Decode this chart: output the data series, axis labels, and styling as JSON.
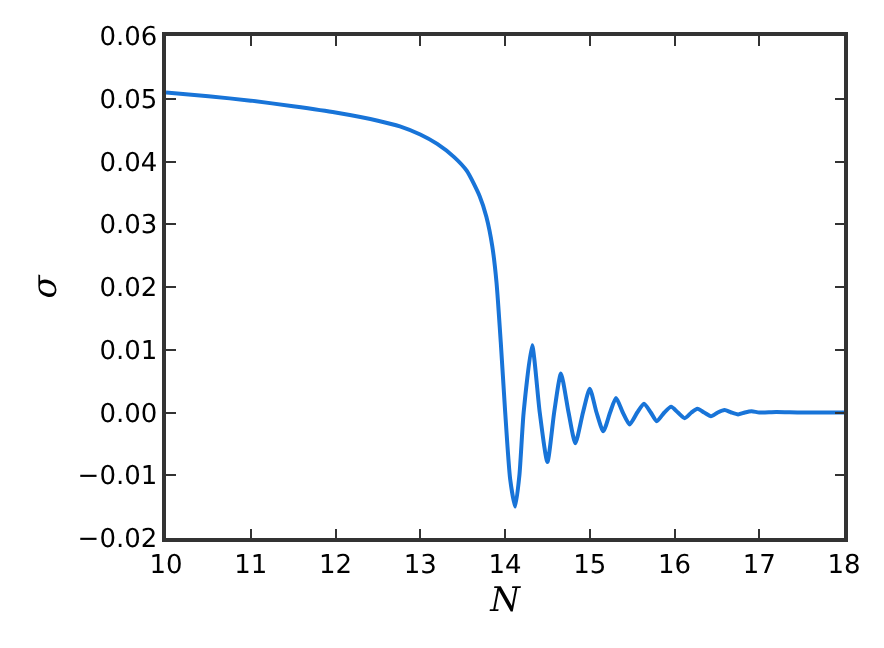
{
  "chart_data": {
    "type": "line",
    "xlabel": "N",
    "ylabel": "σ",
    "x": [
      10,
      10.5,
      11,
      11.5,
      12,
      12.5,
      12.76,
      13,
      13.2,
      13.4,
      13.55,
      13.7,
      13.78,
      13.85,
      13.9,
      13.95,
      14.0,
      14.06,
      14.12,
      14.17,
      14.22,
      14.32,
      14.41,
      14.5,
      14.58,
      14.66,
      14.75,
      14.83,
      14.92,
      15.0,
      15.08,
      15.16,
      15.24,
      15.31,
      15.39,
      15.47,
      15.56,
      15.64,
      15.72,
      15.79,
      15.88,
      15.96,
      16.04,
      16.12,
      16.2,
      16.27,
      16.35,
      16.43,
      16.51,
      16.59,
      16.67,
      16.75,
      16.83,
      16.91,
      17.0,
      17.2,
      17.5,
      18
    ],
    "series": [
      {
        "color": "#1874d8",
        "values": [
          0.051,
          0.0504,
          0.0497,
          0.0488,
          0.0478,
          0.0465,
          0.0456,
          0.0443,
          0.0428,
          0.0407,
          0.0385,
          0.0345,
          0.0312,
          0.0265,
          0.0207,
          0.0112,
          0.0005,
          -0.0105,
          -0.015,
          -0.01,
          0.0,
          0.0107,
          0.0,
          -0.0079,
          0.0,
          0.0062,
          0.0,
          -0.0049,
          0.0,
          0.0038,
          0.0,
          -0.003,
          0.0,
          0.0023,
          0.0,
          -0.0019,
          0.0,
          0.0014,
          0.0,
          -0.0014,
          0.0,
          0.0009,
          0.0,
          -0.0009,
          0.0,
          0.0006,
          0.0,
          -0.0006,
          0.0,
          0.0004,
          0.0,
          -0.0003,
          0.0,
          0.0002,
          0.0,
          0.0001,
          0.0,
          0.0
        ]
      }
    ],
    "xlim": [
      10,
      18
    ],
    "xticks": [
      10,
      11,
      12,
      13,
      14,
      15,
      16,
      17,
      18
    ],
    "ylim": [
      -0.02,
      0.06
    ],
    "yticks": [
      {
        "value": -0.02,
        "label": "−0.02"
      },
      {
        "value": -0.01,
        "label": "−0.01"
      },
      {
        "value": 0,
        "label": "0.00"
      },
      {
        "value": 0.01,
        "label": "0.01"
      },
      {
        "value": 0.02,
        "label": "0.02"
      },
      {
        "value": 0.03,
        "label": "0.03"
      },
      {
        "value": 0.04,
        "label": "0.04"
      },
      {
        "value": 0.05,
        "label": "0.05"
      },
      {
        "value": 0.06,
        "label": "0.06"
      }
    ],
    "marker": "none",
    "line_style": "solid"
  }
}
